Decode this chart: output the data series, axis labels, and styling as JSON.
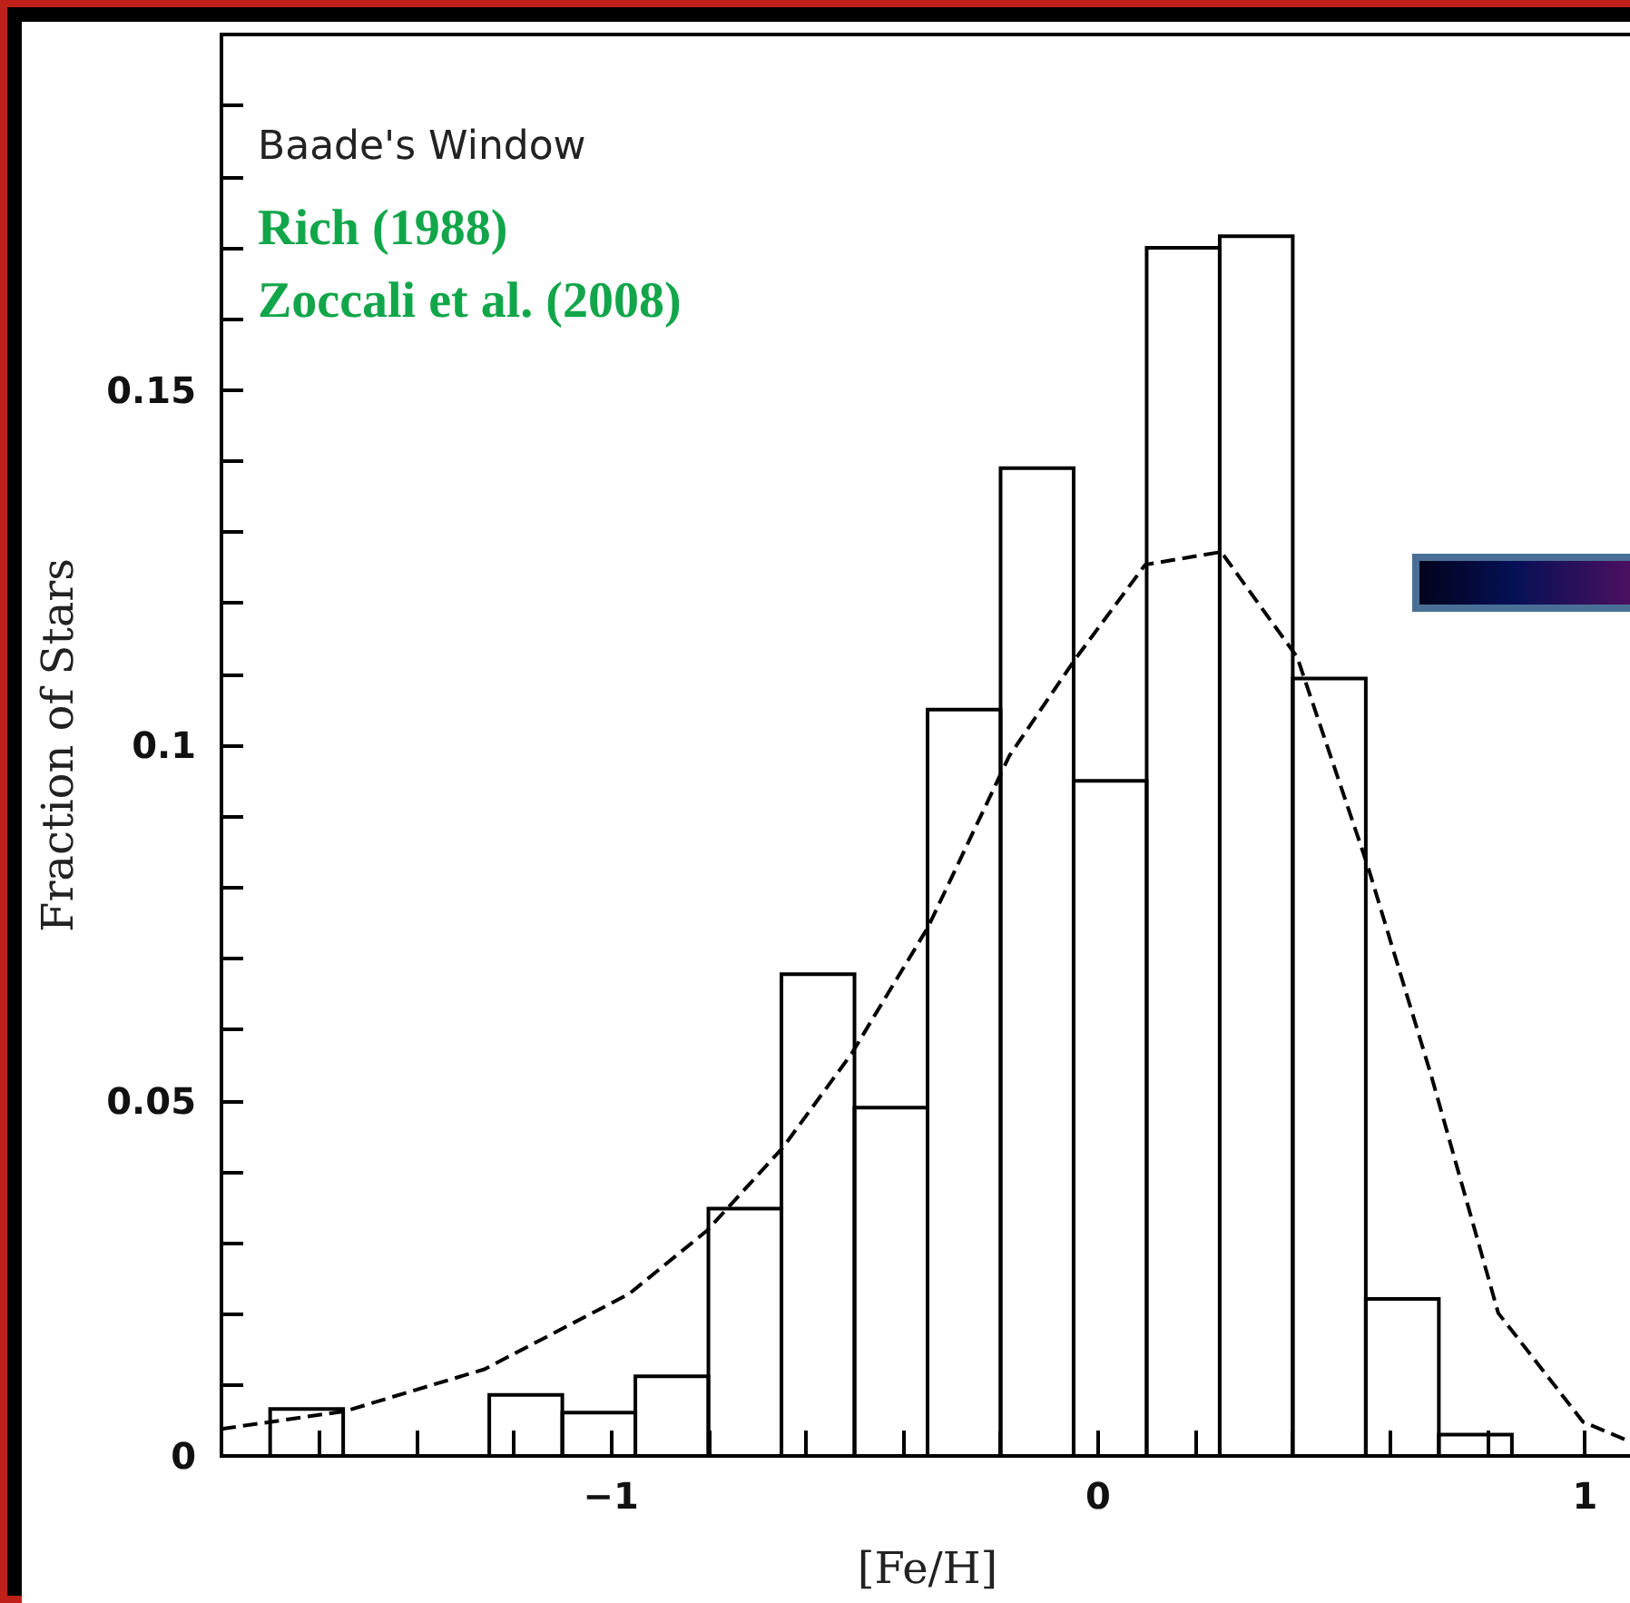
{
  "chart_data": {
    "type": "histogram",
    "xlabel": "[Fe/H]",
    "ylabel": "Fraction of Stars",
    "annotations": [
      "Baade's Window",
      "Rich (1988)",
      "Zoccali et al. (2008)"
    ],
    "bins": [
      -1.7,
      -1.55,
      -1.4,
      -1.25,
      -1.1,
      -0.95,
      -0.8,
      -0.65,
      -0.5,
      -0.35,
      -0.2,
      -0.05,
      0.1,
      0.25,
      0.4,
      0.55,
      0.7,
      0.85
    ],
    "series": [
      {
        "type": "histogram",
        "color": "#000000",
        "values": [
          0.0066,
          0,
          0,
          0.0086,
          0.0061,
          0.0112,
          0.0348,
          0.0678,
          0.049,
          0.105,
          0.139,
          0.095,
          0.17,
          0.1716,
          0.1094,
          0.0221,
          0.003
        ]
      },
      {
        "type": "line",
        "color": "#000000",
        "line_style": "dashed",
        "x": [
          -1.8,
          -1.546,
          -1.26,
          -0.963,
          -0.803,
          -0.647,
          -0.506,
          -0.349,
          -0.182,
          -0.048,
          0.097,
          0.253,
          0.409,
          0.554,
          0.684,
          0.822,
          0.996,
          1.1
        ],
        "values": [
          0.0038,
          0.0063,
          0.0122,
          0.0228,
          0.0317,
          0.0434,
          0.0566,
          0.0744,
          0.0985,
          0.112,
          0.1254,
          0.1272,
          0.1124,
          0.083,
          0.0536,
          0.0201,
          0.0048,
          0.0018
        ]
      }
    ],
    "marker": "none",
    "xlim": [
      -1.8,
      1.1
    ],
    "xticks": [
      {
        "value": -1.8,
        "label": null
      },
      {
        "value": -1.6,
        "label": null
      },
      {
        "value": -1.4,
        "label": null
      },
      {
        "value": -1.2,
        "label": null
      },
      -1,
      {
        "value": -0.8,
        "label": null
      },
      {
        "value": -0.6,
        "label": null
      },
      {
        "value": -0.4,
        "label": null
      },
      {
        "value": -0.2,
        "label": null
      },
      0,
      {
        "value": 0.2,
        "label": null
      },
      {
        "value": 0.4,
        "label": null
      },
      {
        "value": 0.6,
        "label": null
      },
      {
        "value": 0.8,
        "label": null
      },
      1
    ],
    "ylim": [
      0,
      0.2
    ],
    "yticks": [
      0,
      {
        "value": 0.01,
        "label": null
      },
      {
        "value": 0.02,
        "label": null
      },
      {
        "value": 0.03,
        "label": null
      },
      {
        "value": 0.04,
        "label": null
      },
      0.05,
      {
        "value": 0.06,
        "label": null
      },
      {
        "value": 0.07,
        "label": null
      },
      {
        "value": 0.08,
        "label": null
      },
      {
        "value": 0.09,
        "label": null
      },
      0.1,
      {
        "value": 0.11,
        "label": null
      },
      {
        "value": 0.12,
        "label": null
      },
      {
        "value": 0.13,
        "label": null
      },
      {
        "value": 0.14,
        "label": null
      },
      0.15,
      {
        "value": 0.16,
        "label": null
      },
      {
        "value": 0.17,
        "label": null
      },
      {
        "value": 0.18,
        "label": null
      },
      {
        "value": 0.19,
        "label": null
      }
    ],
    "grid": false
  }
}
